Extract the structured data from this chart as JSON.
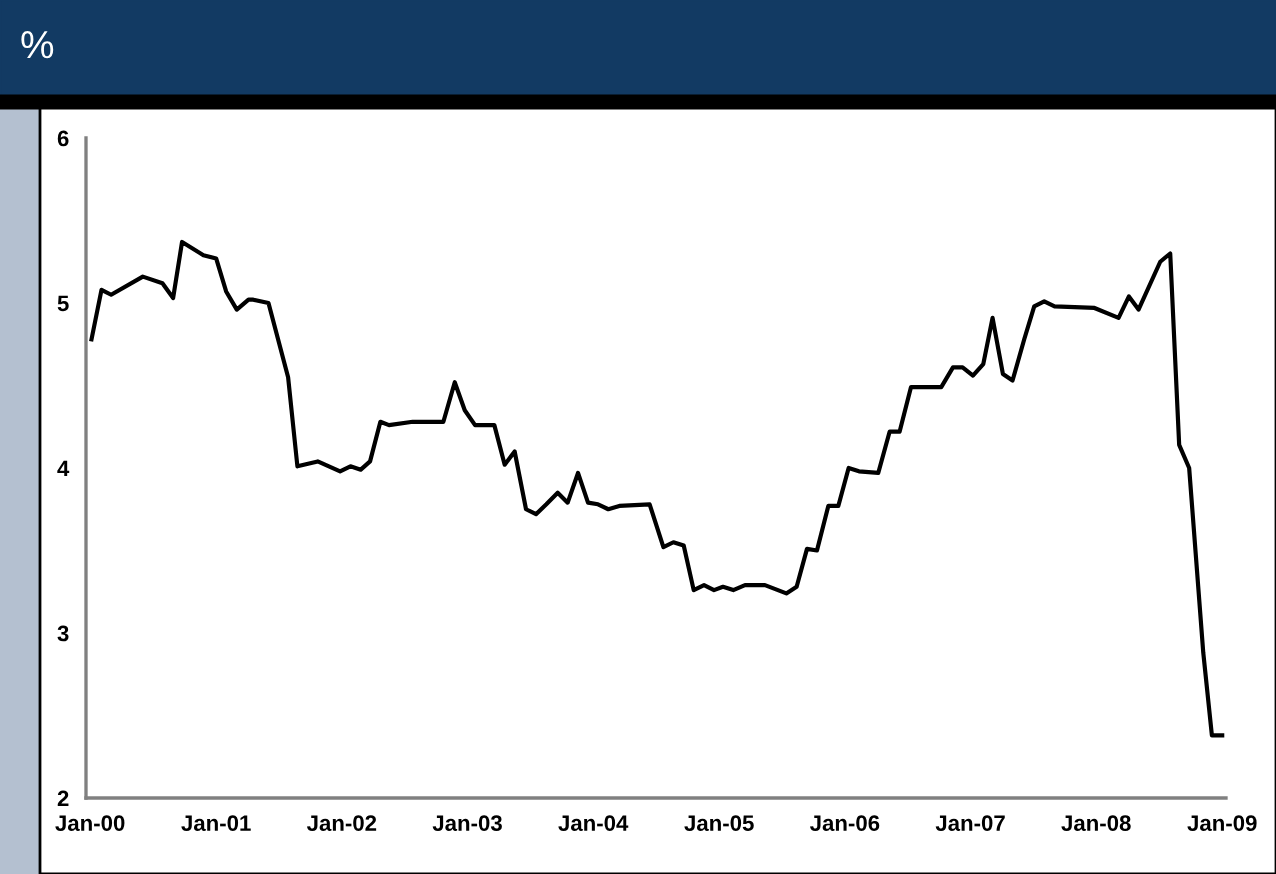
{
  "chart_data": {
    "type": "line",
    "title": "%",
    "x": [
      "2000-01-05",
      "2000-02-03",
      "2000-03-02",
      "2000-06-02",
      "2000-07-29",
      "2000-08-29",
      "2000-09-24",
      "2000-11-25",
      "2001-01-01",
      "2001-01-30",
      "2001-03-02",
      "2001-04-05",
      "2001-04-19",
      "2001-06-02",
      "2001-07-29",
      "2001-08-25",
      "2001-10-23",
      "2001-12-27",
      "2002-01-26",
      "2002-02-25",
      "2002-03-24",
      "2002-04-23",
      "2002-05-18",
      "2002-07-26",
      "2002-10-23",
      "2002-11-25",
      "2002-12-24",
      "2003-01-23",
      "2003-03-20",
      "2003-04-19",
      "2003-05-18",
      "2003-06-20",
      "2003-07-19",
      "2003-08-18",
      "2003-09-20",
      "2003-10-19",
      "2003-11-18",
      "2003-12-17",
      "2004-01-15",
      "2004-02-14",
      "2004-03-17",
      "2004-06-13",
      "2004-07-23",
      "2004-08-21",
      "2004-09-20",
      "2004-10-19",
      "2004-11-18",
      "2004-12-17",
      "2005-01-12",
      "2005-02-11",
      "2005-03-17",
      "2005-05-14",
      "2005-07-15",
      "2005-08-14",
      "2005-09-13",
      "2005-10-12",
      "2005-11-14",
      "2005-12-13",
      "2006-01-12",
      "2006-02-11",
      "2006-04-08",
      "2006-05-11",
      "2006-06-09",
      "2006-07-12",
      "2006-08-07",
      "2006-10-08",
      "2006-11-11",
      "2006-12-09",
      "2007-01-08",
      "2007-02-07",
      "2007-03-06",
      "2007-04-05",
      "2007-05-03",
      "2007-06-06",
      "2007-07-05",
      "2007-08-03",
      "2007-09-02",
      "2007-12-27",
      "2008-03-06",
      "2008-04-05",
      "2008-05-03",
      "2008-07-05",
      "2008-08-03",
      "2008-08-29",
      "2008-09-27",
      "2008-11-07",
      "2008-12-02",
      "2009-01-01"
    ],
    "series": [
      {
        "color": "#000000",
        "values": [
          4.78,
          5.08,
          5.05,
          5.16,
          5.12,
          5.03,
          5.37,
          5.29,
          5.27,
          5.07,
          4.96,
          5.02,
          5.02,
          5.0,
          4.55,
          4.01,
          4.04,
          3.98,
          4.01,
          3.99,
          4.04,
          4.28,
          4.26,
          4.28,
          4.28,
          4.52,
          4.35,
          4.26,
          4.26,
          4.02,
          4.1,
          3.75,
          3.72,
          3.78,
          3.85,
          3.79,
          3.97,
          3.79,
          3.78,
          3.75,
          3.77,
          3.78,
          3.52,
          3.55,
          3.53,
          3.26,
          3.29,
          3.26,
          3.28,
          3.26,
          3.29,
          3.29,
          3.24,
          3.28,
          3.51,
          3.5,
          3.77,
          3.77,
          4.0,
          3.98,
          3.97,
          4.22,
          4.22,
          4.49,
          4.49,
          4.49,
          4.61,
          4.61,
          4.56,
          4.63,
          4.91,
          4.57,
          4.53,
          4.78,
          4.98,
          5.01,
          4.98,
          4.97,
          4.91,
          5.04,
          4.96,
          5.25,
          5.3,
          4.14,
          4.0,
          2.88,
          2.38,
          2.38
        ]
      }
    ],
    "xlim": [
      "1999-12-20",
      "2009-01-12"
    ],
    "xticks": [
      {
        "value": "2000-01-01",
        "label": "Jan-00"
      },
      {
        "value": "2001-01-01",
        "label": "Jan-01"
      },
      {
        "value": "2002-01-01",
        "label": "Jan-02"
      },
      {
        "value": "2003-01-01",
        "label": "Jan-03"
      },
      {
        "value": "2004-01-01",
        "label": "Jan-04"
      },
      {
        "value": "2005-01-01",
        "label": "Jan-05"
      },
      {
        "value": "2006-01-01",
        "label": "Jan-06"
      },
      {
        "value": "2007-01-01",
        "label": "Jan-07"
      },
      {
        "value": "2008-01-01",
        "label": "Jan-08"
      },
      {
        "value": "2009-01-01",
        "label": "Jan-09"
      }
    ],
    "ylim": [
      2,
      6
    ],
    "yticks": [
      2,
      3,
      4,
      5,
      6
    ],
    "grid": false,
    "legend": false,
    "marker": "none",
    "line_style": "solid"
  }
}
